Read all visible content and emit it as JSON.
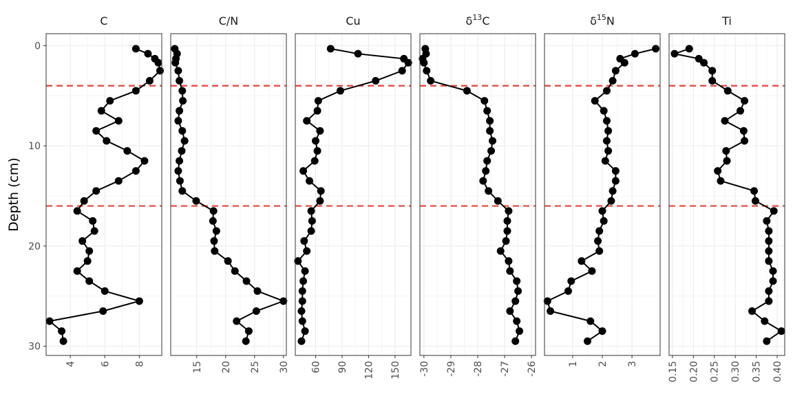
{
  "chart_data": {
    "type": "line",
    "ylabel": "Depth (cm)",
    "y_reversed": true,
    "ylim": [
      0,
      30
    ],
    "y_ticks": [
      0,
      10,
      20,
      30
    ],
    "grid": true,
    "reference_lines": {
      "depths": [
        4,
        16
      ],
      "color": "#e8413a",
      "style": "dashed"
    },
    "depths": [
      0.3,
      0.8,
      1.3,
      1.7,
      2.5,
      3.5,
      4.5,
      5.5,
      6.5,
      7.5,
      8.5,
      9.5,
      10.5,
      11.5,
      12.5,
      13.5,
      14.5,
      15.5,
      16.5,
      17.5,
      18.5,
      19.5,
      20.5,
      21.5,
      22.5,
      23.5,
      24.5,
      25.5,
      26.5,
      27.5,
      28.5,
      29.5
    ],
    "panels": [
      {
        "title": "C",
        "title_sup": "",
        "title_suffix": "",
        "xlim": [
          2.6,
          9.3
        ],
        "x_ticks": [
          4,
          6,
          8
        ],
        "x_tick_labels": [
          "4",
          "6",
          "8"
        ],
        "values": [
          7.8,
          8.5,
          8.9,
          9.1,
          9.2,
          8.6,
          7.8,
          6.3,
          5.8,
          6.8,
          5.5,
          6.1,
          7.3,
          8.3,
          7.8,
          6.8,
          5.5,
          4.8,
          4.4,
          5.3,
          5.4,
          4.7,
          5.1,
          5.0,
          4.4,
          5.1,
          6.0,
          8.0,
          5.9,
          2.8,
          3.5,
          3.6
        ]
      },
      {
        "title": "C/N",
        "title_sup": "",
        "title_suffix": "",
        "xlim": [
          10.5,
          30.5
        ],
        "x_ticks": [
          15,
          20,
          25,
          30
        ],
        "x_tick_labels": [
          "15",
          "20",
          "25",
          "30"
        ],
        "values": [
          11.2,
          11.6,
          11.4,
          11.3,
          11.8,
          12.0,
          12.5,
          12.6,
          12.0,
          11.8,
          12.5,
          12.9,
          12.4,
          12.0,
          11.8,
          12.1,
          12.5,
          14.9,
          17.9,
          17.8,
          18.4,
          18.0,
          18.1,
          20.4,
          21.6,
          23.6,
          25.5,
          30.0,
          25.3,
          21.9,
          24.0,
          23.5
        ]
      },
      {
        "title": "Cu",
        "title_sup": "",
        "title_suffix": "",
        "xlim": [
          37,
          168
        ],
        "x_ticks": [
          60,
          90,
          120,
          150
        ],
        "x_tick_labels": [
          "60",
          "90",
          "120",
          "150"
        ],
        "values": [
          77,
          108,
          160,
          165,
          158,
          128,
          88,
          63,
          62,
          50,
          65,
          60,
          62,
          59,
          46,
          53,
          66,
          65,
          55,
          56,
          55,
          47,
          50,
          40,
          48,
          46,
          45,
          45,
          44,
          45,
          48,
          44
        ]
      },
      {
        "title": "C",
        "title_sup": "13",
        "title_suffix": "",
        "xlim": [
          -30.15,
          -25.85
        ],
        "x_ticks": [
          -30,
          -29,
          -28,
          -27,
          -26
        ],
        "x_tick_labels": [
          "-30",
          "-29",
          "-28",
          "-27",
          "-26"
        ],
        "values": [
          -29.95,
          -29.92,
          -30.05,
          -30.0,
          -29.9,
          -29.75,
          -28.4,
          -27.75,
          -27.65,
          -27.55,
          -27.55,
          -27.45,
          -27.5,
          -27.65,
          -27.7,
          -27.8,
          -27.6,
          -27.25,
          -26.85,
          -26.9,
          -26.9,
          -26.95,
          -27.15,
          -26.85,
          -26.8,
          -26.55,
          -26.5,
          -26.6,
          -26.8,
          -26.55,
          -26.45,
          -26.6
        ]
      },
      {
        "title": "N",
        "title_sup": "15",
        "title_suffix": "",
        "xlim": [
          0.05,
          3.95
        ],
        "x_ticks": [
          1,
          2,
          3
        ],
        "x_tick_labels": [
          "1",
          "2",
          "3"
        ],
        "values": [
          3.8,
          3.1,
          2.6,
          2.75,
          2.45,
          2.35,
          2.15,
          1.75,
          2.05,
          2.15,
          2.2,
          2.15,
          2.2,
          2.1,
          2.45,
          2.45,
          2.35,
          2.3,
          2.0,
          2.05,
          1.9,
          1.85,
          1.9,
          1.3,
          1.65,
          0.95,
          0.85,
          0.15,
          0.25,
          1.6,
          2.0,
          1.5
        ]
      },
      {
        "title": "Ti",
        "title_sup": "",
        "title_suffix": "",
        "xlim": [
          0.142,
          0.418
        ],
        "x_ticks": [
          0.15,
          0.2,
          0.25,
          0.3,
          0.35,
          0.4
        ],
        "x_tick_labels": [
          "0.15",
          "0.20",
          "0.25",
          "0.30",
          "0.35",
          "0.40"
        ],
        "values": [
          0.19,
          0.155,
          0.213,
          0.225,
          0.245,
          0.245,
          0.282,
          0.322,
          0.312,
          0.275,
          0.32,
          0.322,
          0.278,
          0.28,
          0.258,
          0.265,
          0.345,
          0.348,
          0.392,
          0.375,
          0.38,
          0.38,
          0.38,
          0.38,
          0.39,
          0.39,
          0.38,
          0.38,
          0.34,
          0.37,
          0.41,
          0.375
        ]
      }
    ]
  }
}
